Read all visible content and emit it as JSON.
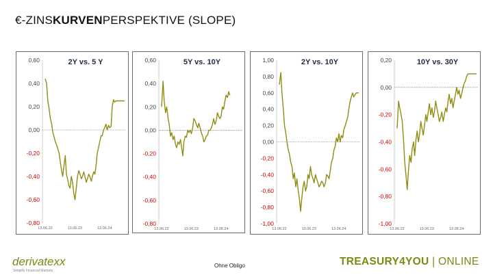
{
  "title": {
    "prefix": "€-ZINS",
    "bold": "KURVEN",
    "suffix": "PERSPEKTIVE (SLOPE)"
  },
  "footer": {
    "logo_text": "derivatexx",
    "logo_tagline": "Simplify Financial Markets",
    "note": "Ohne Obligo",
    "brand_bold": "TREASURY4YOU",
    "brand_sep": " | ",
    "brand_rest": "ONLINE"
  },
  "colors": {
    "line": "#8f8c12",
    "negative": "#d00000",
    "positive_tick": "#444444",
    "brand": "#7a8a12"
  },
  "chart_data": [
    {
      "type": "line",
      "title": "2Y vs. 5 Y",
      "ylim": [
        -0.8,
        0.6
      ],
      "yticks": [
        "0,60",
        "0,40",
        "0,20",
        "0,00",
        "-0,20",
        "-0,40",
        "-0,60",
        "-0,80"
      ],
      "xticks": [
        "13.06.22",
        "13.06.23",
        "13.06.24"
      ],
      "x": [
        "2022-06-13",
        "2022-07-01",
        "2022-07-15",
        "2022-08-01",
        "2022-08-15",
        "2022-09-01",
        "2022-09-15",
        "2022-10-01",
        "2022-10-15",
        "2022-11-01",
        "2022-11-15",
        "2022-12-01",
        "2022-12-15",
        "2023-01-01",
        "2023-01-15",
        "2023-02-01",
        "2023-02-15",
        "2023-03-01",
        "2023-03-15",
        "2023-04-01",
        "2023-04-15",
        "2023-05-01",
        "2023-05-15",
        "2023-06-01",
        "2023-06-15",
        "2023-07-01",
        "2023-07-15",
        "2023-08-01",
        "2023-08-15",
        "2023-09-01",
        "2023-09-15",
        "2023-10-01",
        "2023-10-15",
        "2023-11-01",
        "2023-11-15",
        "2023-12-01",
        "2023-12-15",
        "2024-01-01",
        "2024-01-15",
        "2024-02-01",
        "2024-02-15",
        "2024-03-01",
        "2024-03-15",
        "2024-04-01",
        "2024-04-15",
        "2024-05-01",
        "2024-05-15",
        "2024-06-01",
        "2024-06-15",
        "2024-07-01",
        "2024-07-15",
        "2024-08-01",
        "2024-08-15",
        "2024-09-01",
        "2024-09-15",
        "2024-10-01",
        "2024-10-15",
        "2024-11-01",
        "2024-11-15",
        "2024-12-01",
        "2024-12-15",
        "2025-01-01",
        "2025-01-15",
        "2025-02-01",
        "2025-02-15"
      ],
      "values": [
        0.44,
        0.4,
        0.25,
        0.18,
        0.1,
        0.05,
        -0.02,
        -0.06,
        -0.1,
        -0.13,
        -0.16,
        -0.2,
        -0.27,
        -0.35,
        -0.4,
        -0.3,
        -0.22,
        -0.38,
        -0.42,
        -0.48,
        -0.5,
        -0.4,
        -0.45,
        -0.55,
        -0.6,
        -0.5,
        -0.4,
        -0.35,
        -0.38,
        -0.42,
        -0.4,
        -0.36,
        -0.4,
        -0.45,
        -0.42,
        -0.38,
        -0.4,
        -0.44,
        -0.4,
        -0.36,
        -0.38,
        -0.3,
        -0.2,
        -0.15,
        -0.1,
        -0.05,
        -0.05,
        0.0,
        0.02,
        0.05,
        0.0,
        0.04,
        0.02,
        0.03,
        0.2,
        0.26,
        0.24,
        0.25,
        0.25,
        0.25,
        0.25,
        0.25,
        0.25,
        0.25,
        0.25
      ]
    },
    {
      "type": "line",
      "title": "5Y vs. 10Y",
      "ylim": [
        -0.8,
        0.6
      ],
      "yticks": [
        "0,60",
        "0,40",
        "0,20",
        "0,00",
        "-0,20",
        "-0,40",
        "-0,60",
        "-0,80"
      ],
      "xticks": [
        "13.06.22",
        "13.06.23",
        "13.06.24"
      ],
      "x": [
        "2022-06-13",
        "2022-07-01",
        "2022-07-15",
        "2022-08-01",
        "2022-08-15",
        "2022-09-01",
        "2022-09-15",
        "2022-10-01",
        "2022-10-15",
        "2022-11-01",
        "2022-11-15",
        "2022-12-01",
        "2022-12-15",
        "2023-01-01",
        "2023-01-15",
        "2023-02-01",
        "2023-02-15",
        "2023-03-01",
        "2023-03-15",
        "2023-04-01",
        "2023-04-15",
        "2023-05-01",
        "2023-05-15",
        "2023-06-01",
        "2023-06-15",
        "2023-07-01",
        "2023-07-15",
        "2023-08-01",
        "2023-08-15",
        "2023-09-01",
        "2023-09-15",
        "2023-10-01",
        "2023-10-15",
        "2023-11-01",
        "2023-11-15",
        "2023-12-01",
        "2023-12-15",
        "2024-01-01",
        "2024-01-15",
        "2024-02-01",
        "2024-02-15",
        "2024-03-01",
        "2024-03-15",
        "2024-04-01",
        "2024-04-15",
        "2024-05-01",
        "2024-05-15",
        "2024-06-01",
        "2024-06-15",
        "2024-07-01",
        "2024-07-15",
        "2024-08-01",
        "2024-08-15",
        "2024-09-01",
        "2024-09-15",
        "2024-10-01"
      ],
      "values": [
        0.2,
        0.42,
        0.25,
        0.15,
        0.2,
        0.1,
        0.05,
        -0.05,
        -0.02,
        -0.08,
        -0.05,
        -0.12,
        -0.15,
        -0.1,
        -0.12,
        -0.08,
        -0.15,
        -0.22,
        -0.1,
        -0.05,
        -0.06,
        0.0,
        -0.02,
        0.0,
        -0.03,
        0.02,
        0.1,
        0.08,
        0.05,
        0.02,
        0.06,
        0.02,
        -0.02,
        -0.05,
        -0.1,
        -0.08,
        -0.05,
        -0.04,
        0.0,
        0.0,
        0.02,
        0.05,
        0.1,
        0.05,
        0.08,
        0.15,
        0.12,
        0.1,
        0.12,
        0.2,
        0.18,
        0.25,
        0.3,
        0.28,
        0.33,
        0.3
      ]
    },
    {
      "type": "line",
      "title": "2Y vs. 10Y",
      "ylim": [
        -1.0,
        1.0
      ],
      "yticks": [
        "1,00",
        "0,80",
        "0,60",
        "0,40",
        "0,20",
        "0,00",
        "-0,20",
        "-0,40",
        "-0,60",
        "-0,80",
        "-1,00"
      ],
      "xticks": [
        "13.06.22",
        "13.06.23",
        "13.06.24"
      ],
      "x": [
        "2022-06-13",
        "2022-07-01",
        "2022-07-15",
        "2022-08-01",
        "2022-08-15",
        "2022-09-01",
        "2022-09-15",
        "2022-10-01",
        "2022-10-15",
        "2022-11-01",
        "2022-11-15",
        "2022-12-01",
        "2022-12-15",
        "2023-01-01",
        "2023-01-15",
        "2023-02-01",
        "2023-02-15",
        "2023-03-01",
        "2023-03-15",
        "2023-04-01",
        "2023-04-15",
        "2023-05-01",
        "2023-05-15",
        "2023-06-01",
        "2023-06-15",
        "2023-07-01",
        "2023-07-15",
        "2023-08-01",
        "2023-08-15",
        "2023-09-01",
        "2023-09-15",
        "2023-10-01",
        "2023-10-15",
        "2023-11-01",
        "2023-11-15",
        "2023-12-01",
        "2023-12-15",
        "2024-01-01",
        "2024-01-15",
        "2024-02-01",
        "2024-02-15",
        "2024-03-01",
        "2024-03-15",
        "2024-04-01",
        "2024-04-15",
        "2024-05-01",
        "2024-05-15",
        "2024-06-01",
        "2024-06-15",
        "2024-07-01",
        "2024-07-15",
        "2024-08-01",
        "2024-08-15",
        "2024-09-01",
        "2024-09-15",
        "2024-10-01",
        "2024-10-15",
        "2024-11-01",
        "2024-11-15",
        "2024-12-01",
        "2024-12-15",
        "2025-01-01",
        "2025-01-15",
        "2025-02-01",
        "2025-02-15"
      ],
      "values": [
        0.7,
        0.85,
        0.6,
        0.4,
        0.2,
        0.1,
        0.0,
        -0.1,
        -0.15,
        -0.25,
        -0.3,
        -0.45,
        -0.38,
        -0.55,
        -0.45,
        -0.6,
        -0.7,
        -0.85,
        -0.7,
        -0.55,
        -0.48,
        -0.6,
        -0.55,
        -0.4,
        -0.45,
        -0.3,
        -0.4,
        -0.45,
        -0.5,
        -0.4,
        -0.45,
        -0.5,
        -0.55,
        -0.52,
        -0.48,
        -0.5,
        -0.55,
        -0.5,
        -0.4,
        -0.42,
        -0.45,
        -0.35,
        -0.25,
        -0.2,
        -0.1,
        -0.05,
        0.05,
        0.0,
        0.1,
        0.0,
        0.08,
        0.05,
        0.15,
        0.2,
        0.25,
        0.3,
        0.4,
        0.5,
        0.55,
        0.6,
        0.55,
        0.58,
        0.6,
        0.6,
        0.6
      ]
    },
    {
      "type": "line",
      "title": "10Y vs. 30Y",
      "ylim": [
        -1.0,
        0.2
      ],
      "yticks": [
        "0,20",
        "0,00",
        "-0,20",
        "-0,40",
        "-0,60",
        "-0,80",
        "-1,00"
      ],
      "xticks": [
        "13.06.22",
        "13.06.23",
        "13.06.24"
      ],
      "x": [
        "2022-06-13",
        "2022-07-01",
        "2022-07-15",
        "2022-08-01",
        "2022-08-15",
        "2022-09-01",
        "2022-09-15",
        "2022-10-01",
        "2022-10-15",
        "2022-11-01",
        "2022-11-15",
        "2022-12-01",
        "2022-12-15",
        "2023-01-01",
        "2023-01-15",
        "2023-02-01",
        "2023-02-15",
        "2023-03-01",
        "2023-03-15",
        "2023-04-01",
        "2023-04-15",
        "2023-05-01",
        "2023-05-15",
        "2023-06-01",
        "2023-06-15",
        "2023-07-01",
        "2023-07-15",
        "2023-08-01",
        "2023-08-15",
        "2023-09-01",
        "2023-09-15",
        "2023-10-01",
        "2023-10-15",
        "2023-11-01",
        "2023-11-15",
        "2023-12-01",
        "2023-12-15",
        "2024-01-01",
        "2024-01-15",
        "2024-02-01",
        "2024-02-15",
        "2024-03-01",
        "2024-03-15",
        "2024-04-01",
        "2024-04-15",
        "2024-05-01",
        "2024-05-15",
        "2024-06-01",
        "2024-06-15",
        "2024-07-01",
        "2024-07-15",
        "2024-08-01",
        "2024-08-15",
        "2024-09-01",
        "2024-09-15",
        "2024-10-01",
        "2024-10-15",
        "2024-11-01",
        "2024-11-15",
        "2024-12-01",
        "2024-12-15",
        "2025-01-01",
        "2025-01-15",
        "2025-02-01",
        "2025-02-15"
      ],
      "values": [
        -0.3,
        -0.1,
        -0.15,
        -0.2,
        -0.25,
        -0.4,
        -0.55,
        -0.65,
        -0.75,
        -0.6,
        -0.5,
        -0.55,
        -0.45,
        -0.4,
        -0.5,
        -0.38,
        -0.32,
        -0.4,
        -0.35,
        -0.25,
        -0.3,
        -0.35,
        -0.28,
        -0.2,
        -0.25,
        -0.18,
        -0.12,
        -0.2,
        -0.15,
        -0.22,
        -0.18,
        -0.1,
        -0.15,
        -0.2,
        -0.25,
        -0.22,
        -0.18,
        -0.25,
        -0.2,
        -0.15,
        -0.18,
        -0.1,
        -0.05,
        -0.12,
        -0.08,
        -0.15,
        -0.1,
        -0.05,
        0.0,
        -0.05,
        -0.02,
        -0.08,
        -0.05,
        0.0,
        0.03,
        0.05,
        0.08,
        0.1,
        0.1,
        0.1,
        0.1,
        0.1,
        0.1,
        0.1,
        0.1
      ]
    }
  ]
}
